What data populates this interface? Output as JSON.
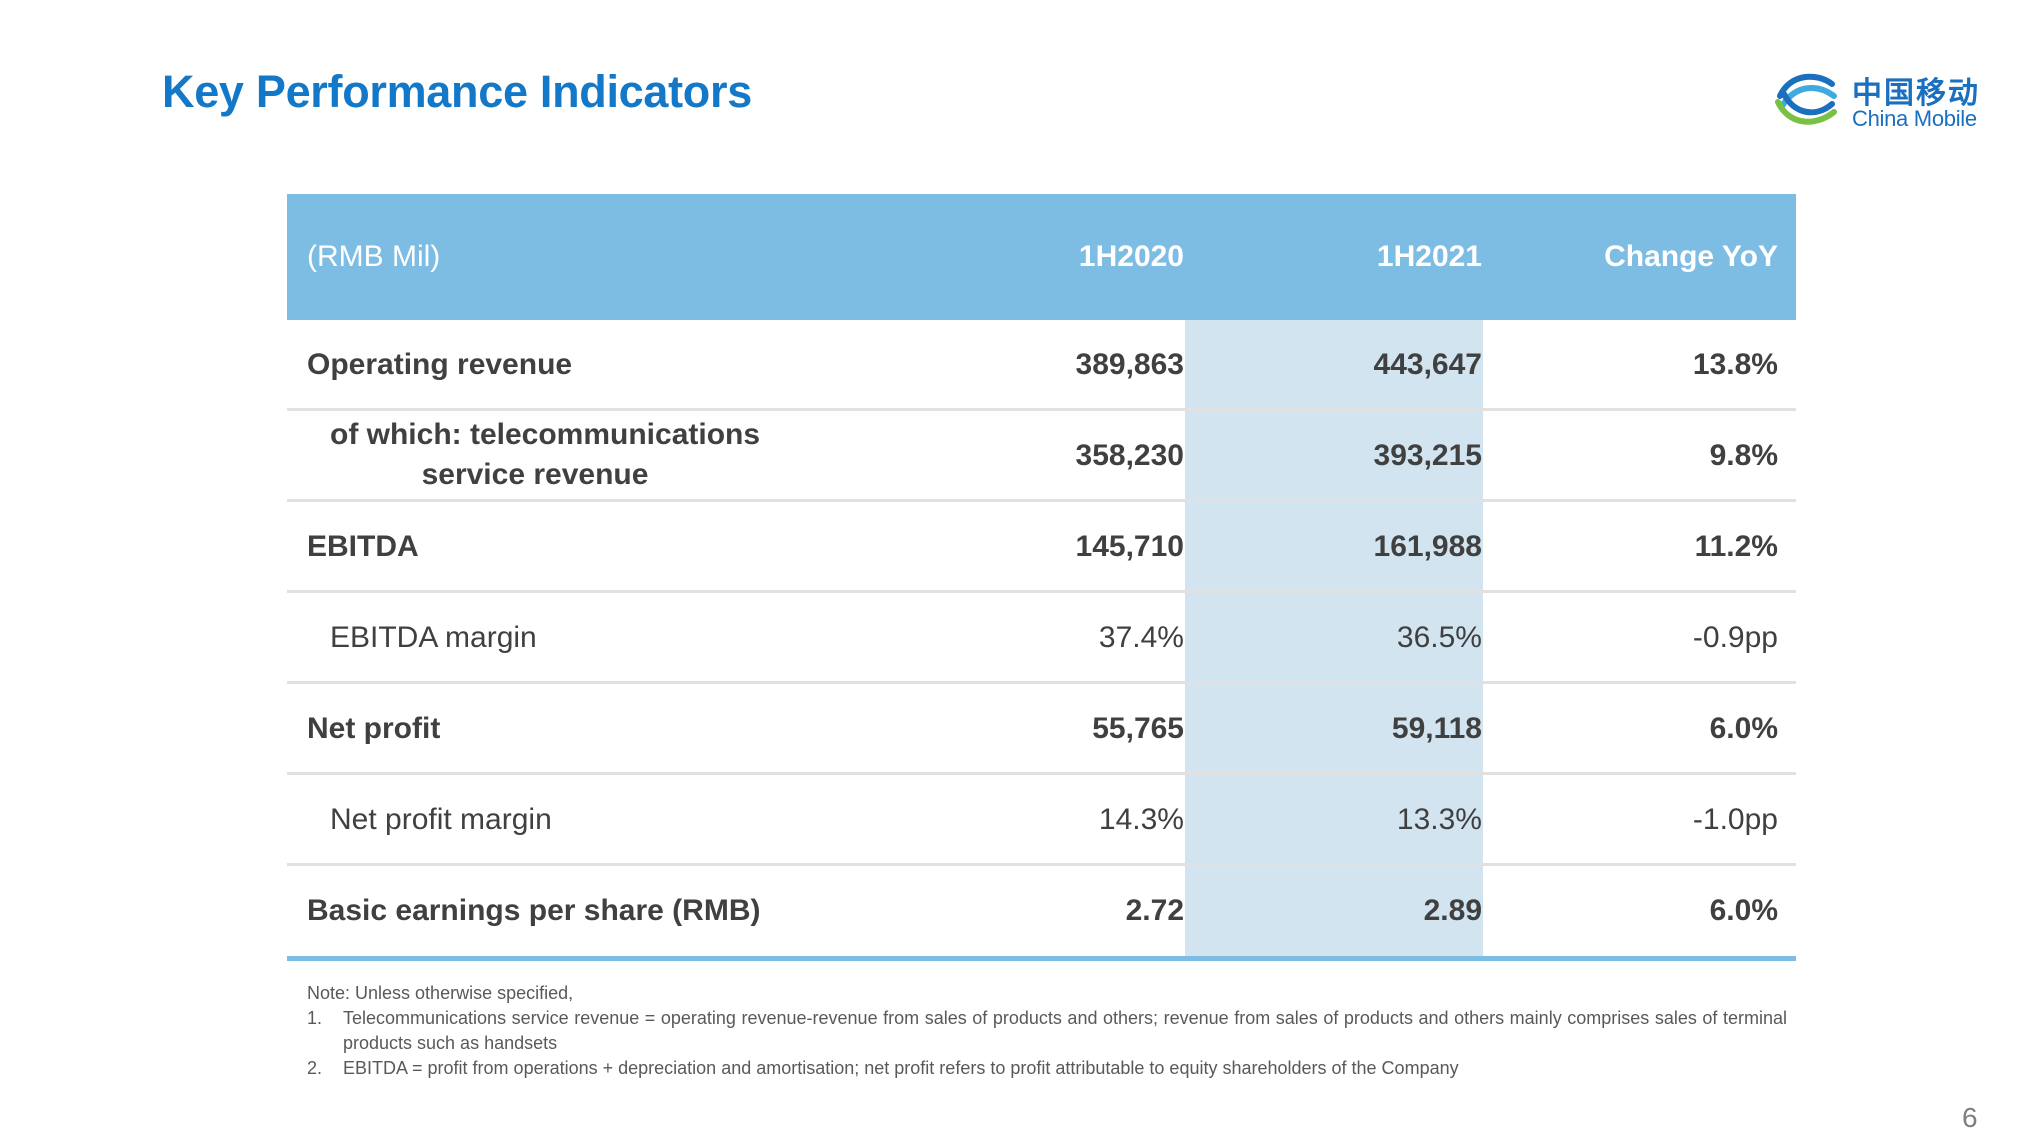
{
  "title": "Key Performance Indicators",
  "logo": {
    "cn": "中国移动",
    "en": "China Mobile",
    "color": "#1a6fbf"
  },
  "table": {
    "headers": [
      "(RMB Mil)",
      "1H2020",
      "1H2021",
      "Change YoY"
    ],
    "rows": [
      {
        "label": "Operating revenue",
        "v2020": "389,863",
        "v2021": "443,647",
        "change": "13.8%"
      },
      {
        "label_line1": "of which: telecommunications",
        "label_line2": "service revenue",
        "v2020": "358,230",
        "v2021": "393,215",
        "change": "9.8%"
      },
      {
        "label": "EBITDA",
        "v2020": "145,710",
        "v2021": "161,988",
        "change": "11.2%"
      },
      {
        "label": "EBITDA margin",
        "v2020": "37.4%",
        "v2021": "36.5%",
        "change": "-0.9pp"
      },
      {
        "label": "Net profit",
        "v2020": "55,765",
        "v2021": "59,118",
        "change": "6.0%"
      },
      {
        "label": "Net profit margin",
        "v2020": "14.3%",
        "v2021": "13.3%",
        "change": "-1.0pp"
      },
      {
        "label": "Basic earnings per share (RMB)",
        "v2020": "2.72",
        "v2021": "2.89",
        "change": "6.0%"
      }
    ]
  },
  "notes": {
    "intro": "Note: Unless otherwise specified,",
    "items": [
      {
        "num": "1.",
        "text": "Telecommunications service revenue = operating revenue-revenue from sales of products and others; revenue from sales of products and others mainly comprises sales  of terminal products such as handsets"
      },
      {
        "num": "2.",
        "text": "EBITDA = profit from operations + depreciation and amortisation; net profit refers to profit attributable to equity shareholders of the Company"
      }
    ]
  },
  "page_number": "6",
  "colors": {
    "title": "#1478c8",
    "header_bg": "#7dbde4",
    "highlight_col": "#d2e4f0",
    "text": "#404040"
  }
}
